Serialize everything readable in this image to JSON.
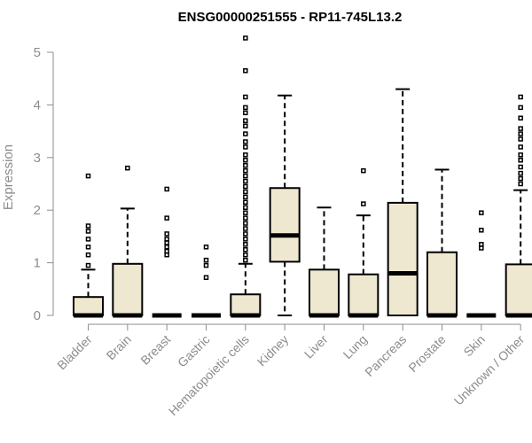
{
  "chart_data": {
    "type": "box",
    "title": "ENSG00000251555 - RP11-745L13.2",
    "ylabel": "Expression",
    "xlabel": "",
    "ylim": [
      0,
      5.25
    ],
    "yticks": [
      0,
      1,
      2,
      3,
      4,
      5
    ],
    "box_fill": "#efe8d1",
    "axis_color": "#8c8c8c",
    "categories": [
      "Bladder",
      "Brain",
      "Breast",
      "Gastric",
      "Hematopoietic cells",
      "Kidney",
      "Liver",
      "Lung",
      "Pancreas",
      "Prostate",
      "Skin",
      "Unknown / Other"
    ],
    "boxes": [
      {
        "q1": 0,
        "median": 0,
        "q3": 0.35,
        "whisker_low": 0,
        "whisker_high": 0.87,
        "outliers": [
          0.95,
          1.15,
          1.3,
          1.45,
          1.6,
          1.7,
          2.65
        ]
      },
      {
        "q1": 0,
        "median": 0,
        "q3": 0.98,
        "whisker_low": 0,
        "whisker_high": 2.03,
        "outliers": [
          2.8
        ]
      },
      {
        "q1": 0,
        "median": 0,
        "q3": 0,
        "whisker_low": 0,
        "whisker_high": 0,
        "outliers": [
          1.15,
          1.22,
          1.3,
          1.38,
          1.45,
          1.55,
          1.85,
          2.4
        ]
      },
      {
        "q1": 0,
        "median": 0,
        "q3": 0,
        "whisker_low": 0,
        "whisker_high": 0,
        "outliers": [
          0.72,
          0.95,
          1.05,
          1.3
        ]
      },
      {
        "q1": 0,
        "median": 0,
        "q3": 0.4,
        "whisker_low": 0,
        "whisker_high": 0.98,
        "outliers": [
          1.05,
          1.15,
          1.25,
          1.35,
          1.45,
          1.55,
          1.65,
          1.75,
          1.85,
          1.95,
          2.05,
          2.15,
          2.25,
          2.35,
          2.45,
          2.55,
          2.65,
          2.75,
          2.85,
          2.95,
          3.05,
          3.2,
          3.3,
          3.45,
          3.6,
          3.7,
          3.85,
          3.95,
          4.15,
          4.65,
          5.27
        ]
      },
      {
        "q1": 1.02,
        "median": 1.52,
        "q3": 2.42,
        "whisker_low": 0,
        "whisker_high": 4.18,
        "outliers": []
      },
      {
        "q1": 0,
        "median": 0,
        "q3": 0.87,
        "whisker_low": 0,
        "whisker_high": 2.05,
        "outliers": []
      },
      {
        "q1": 0,
        "median": 0,
        "q3": 0.78,
        "whisker_low": 0,
        "whisker_high": 1.9,
        "outliers": [
          2.12,
          2.75
        ]
      },
      {
        "q1": 0,
        "median": 0.8,
        "q3": 2.14,
        "whisker_low": 0,
        "whisker_high": 4.3,
        "outliers": []
      },
      {
        "q1": 0,
        "median": 0,
        "q3": 1.2,
        "whisker_low": 0,
        "whisker_high": 2.77,
        "outliers": []
      },
      {
        "q1": 0,
        "median": 0,
        "q3": 0,
        "whisker_low": 0,
        "whisker_high": 0,
        "outliers": [
          1.28,
          1.35,
          1.62,
          1.95
        ]
      },
      {
        "q1": 0,
        "median": 0,
        "q3": 0.97,
        "whisker_low": 0,
        "whisker_high": 2.38,
        "outliers": [
          2.5,
          2.6,
          2.7,
          2.82,
          2.95,
          3.05,
          3.2,
          3.35,
          3.45,
          3.55,
          3.75,
          3.95,
          4.15
        ]
      }
    ]
  }
}
